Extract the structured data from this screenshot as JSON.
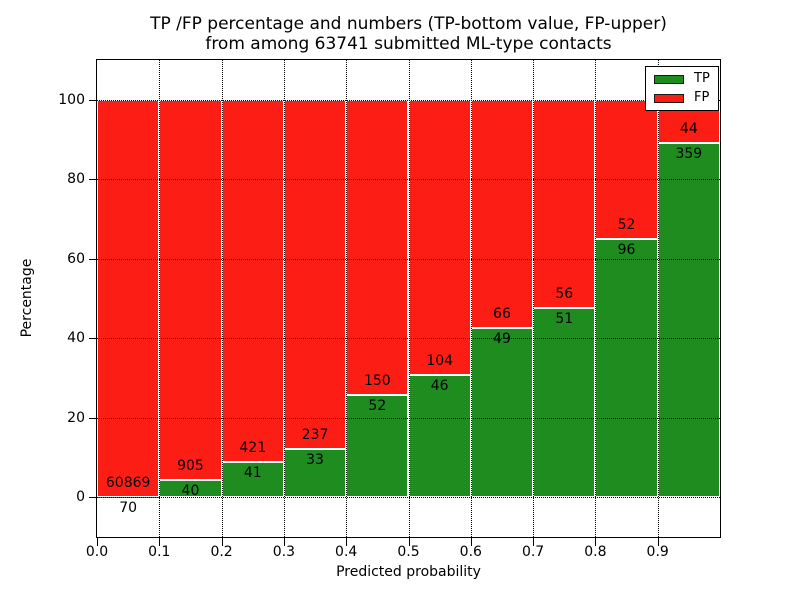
{
  "title": {
    "line1": "TP /FP percentage and numbers (TP-bottom value, FP-upper)",
    "line2": "from among 63741 submitted ML-type contacts"
  },
  "axes": {
    "xlabel": "Predicted probability",
    "ylabel": "Percentage"
  },
  "legend": {
    "items": [
      {
        "label": "TP",
        "color": "#1f8c1f"
      },
      {
        "label": "FP",
        "color": "#fc1e14"
      }
    ]
  },
  "chart_data": {
    "type": "bar",
    "stacked": true,
    "normalized_to_percent": true,
    "title": "TP /FP percentage and numbers (TP-bottom value, FP-upper) from among 63741 submitted ML-type contacts",
    "xlabel": "Predicted probability",
    "ylabel": "Percentage",
    "xlim": [
      0.0,
      1.0
    ],
    "ylim": [
      -10,
      110
    ],
    "x_tick_labels": [
      "0.0",
      "0.1",
      "0.2",
      "0.3",
      "0.4",
      "0.5",
      "0.6",
      "0.7",
      "0.8",
      "0.9"
    ],
    "y_ticks": [
      0,
      20,
      40,
      60,
      80,
      100
    ],
    "grid": {
      "visible": true,
      "style": "dotted",
      "color": "#000000"
    },
    "legend_position": "upper right",
    "total_submitted": 63741,
    "bin_width": 0.1,
    "categories": [
      "0.0-0.1",
      "0.1-0.2",
      "0.2-0.3",
      "0.3-0.4",
      "0.4-0.5",
      "0.5-0.6",
      "0.6-0.7",
      "0.7-0.8",
      "0.8-0.9",
      "0.9-1.0"
    ],
    "series": [
      {
        "name": "TP",
        "color": "#1f8c1f",
        "counts": [
          70,
          40,
          41,
          33,
          52,
          46,
          49,
          51,
          96,
          359
        ]
      },
      {
        "name": "FP",
        "color": "#fc1e14",
        "counts": [
          60869,
          905,
          421,
          237,
          150,
          104,
          66,
          56,
          52,
          44
        ]
      }
    ],
    "tp_percent": [
      0.11,
      4.23,
      8.87,
      12.22,
      25.74,
      30.67,
      42.61,
      47.66,
      64.86,
      89.08
    ],
    "bar_edge_color": "#ffffff"
  }
}
